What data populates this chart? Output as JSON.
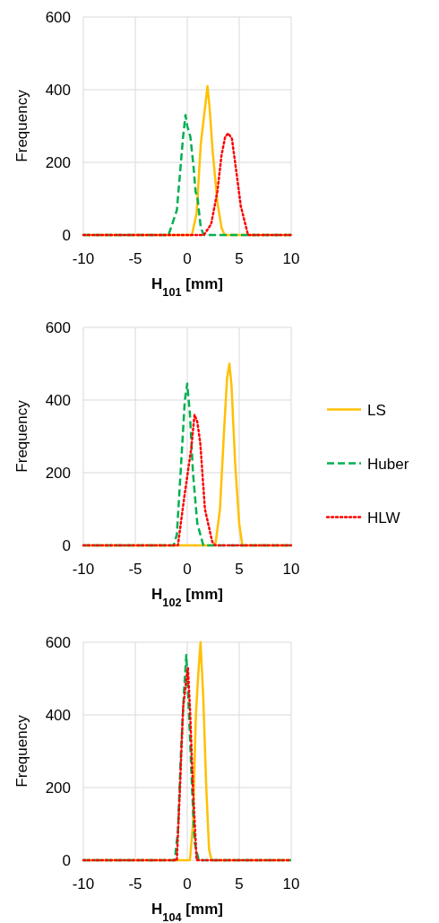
{
  "chart_data": [
    {
      "type": "line",
      "xlabel": "H$_{101}$ [mm]",
      "ylabel": "Frequency",
      "xlim": [
        -10,
        10
      ],
      "xticks": [
        -10,
        -5,
        0,
        5,
        10
      ],
      "ylim": [
        0,
        600
      ],
      "yticks": [
        0,
        200,
        400,
        600
      ],
      "grid": true,
      "legend": false,
      "series": [
        {
          "color": "#ffc000",
          "line_style": "solid",
          "x": [
            -10,
            0.45,
            0.9,
            1.3,
            1.75,
            1.95,
            2.15,
            2.45,
            2.9,
            3.3,
            3.6,
            10
          ],
          "values": [
            0,
            0,
            60,
            250,
            360,
            410,
            350,
            230,
            90,
            20,
            0,
            0
          ]
        },
        {
          "color": "#00b050",
          "line_style": "dashed",
          "x": [
            -10,
            -1.8,
            -1.0,
            -0.4,
            -0.17,
            0,
            0.3,
            0.6,
            0.8,
            1.0,
            1.3,
            1.6,
            10
          ],
          "values": [
            0,
            0,
            68,
            270,
            330,
            300,
            270,
            190,
            120,
            100,
            20,
            0,
            0
          ]
        },
        {
          "color": "#ff0000",
          "line_style": "dotted",
          "x": [
            -10,
            1.6,
            2.3,
            2.9,
            3.3,
            3.65,
            3.95,
            4.3,
            4.7,
            5.15,
            5.85,
            10
          ],
          "values": [
            0,
            0,
            30,
            120,
            220,
            270,
            280,
            265,
            180,
            80,
            0,
            0
          ]
        }
      ]
    },
    {
      "type": "line",
      "xlabel": "H$_{102}$ [mm]",
      "ylabel": "Frequency",
      "xlim": [
        -10,
        10
      ],
      "xticks": [
        -10,
        -5,
        0,
        5,
        10
      ],
      "ylim": [
        0,
        600
      ],
      "yticks": [
        0,
        200,
        400,
        600
      ],
      "grid": true,
      "legend": "right",
      "series": [
        {
          "name": "LS",
          "color": "#ffc000",
          "line_style": "solid",
          "x": [
            -10,
            2.7,
            3.15,
            3.55,
            3.83,
            4.06,
            4.26,
            4.6,
            5.0,
            5.3,
            10
          ],
          "values": [
            0,
            0,
            100,
            320,
            460,
            500,
            440,
            230,
            60,
            0,
            0
          ]
        },
        {
          "name": "Huber",
          "color": "#00b050",
          "line_style": "dashed",
          "x": [
            -10,
            -1.3,
            -1.0,
            -0.6,
            -0.23,
            0,
            0.26,
            0.55,
            0.97,
            1.55,
            10
          ],
          "values": [
            0,
            0,
            30,
            220,
            400,
            445,
            360,
            200,
            60,
            0,
            0
          ]
        },
        {
          "name": "HLW",
          "color": "#ff0000",
          "line_style": "dotted",
          "x": [
            -10,
            -0.9,
            -0.3,
            0.4,
            0.7,
            0.97,
            1.26,
            1.7,
            2.4,
            2.7,
            10
          ],
          "values": [
            0,
            0,
            130,
            270,
            360,
            340,
            280,
            100,
            10,
            0,
            0
          ]
        }
      ]
    },
    {
      "type": "line",
      "xlabel": "H$_{104}$ [mm]",
      "ylabel": "Frequency",
      "xlim": [
        -10,
        10
      ],
      "xticks": [
        -10,
        -5,
        0,
        5,
        10
      ],
      "ylim": [
        0,
        600
      ],
      "yticks": [
        0,
        200,
        400,
        600
      ],
      "grid": true,
      "legend": false,
      "series": [
        {
          "color": "#ffc000",
          "line_style": "solid",
          "x": [
            -10,
            0.26,
            0.55,
            0.83,
            1.1,
            1.28,
            1.54,
            1.83,
            2.1,
            2.34,
            10
          ],
          "values": [
            0,
            0,
            100,
            400,
            530,
            600,
            450,
            200,
            30,
            0,
            0
          ]
        },
        {
          "color": "#00b050",
          "line_style": "dashed",
          "x": [
            -10,
            -1.2,
            -0.9,
            -0.6,
            -0.3,
            -0.09,
            0.17,
            0.46,
            0.7,
            1.1,
            10
          ],
          "values": [
            0,
            0,
            80,
            300,
            470,
            565,
            400,
            200,
            50,
            0,
            0
          ]
        },
        {
          "color": "#ff0000",
          "line_style": "dotted",
          "x": [
            -10,
            -1.0,
            -0.7,
            -0.4,
            0.06,
            0.26,
            0.55,
            0.9,
            10
          ],
          "values": [
            0,
            0,
            200,
            420,
            530,
            420,
            200,
            0,
            0
          ]
        }
      ]
    }
  ]
}
